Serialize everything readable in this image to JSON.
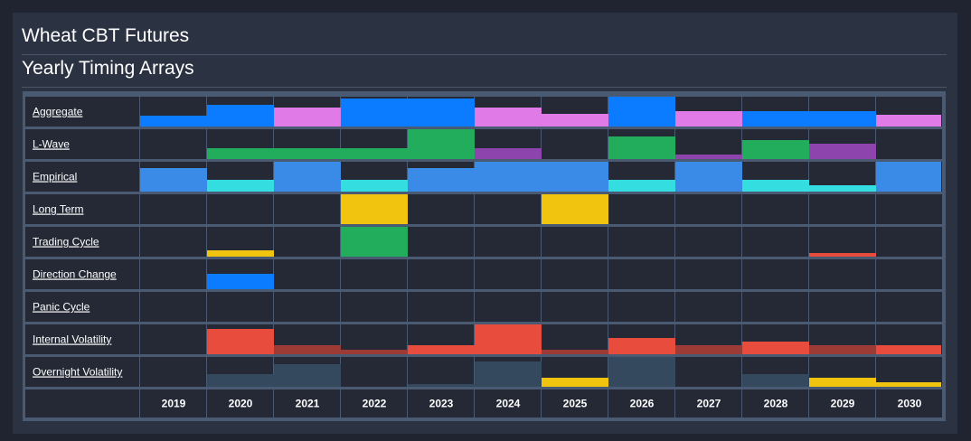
{
  "header": {
    "title": "Wheat CBT Futures",
    "subtitle": "Yearly Timing Arrays"
  },
  "colors": {
    "page_bg": "#1f2430",
    "panel_bg": "#2b3242",
    "cell_bg": "#242935",
    "grid_line": "#3f4a5c",
    "frame": "#4a5a73",
    "blue": "#0b7bff",
    "pink": "#e07ae6",
    "green": "#22ad5c",
    "purple": "#8e44ad",
    "steel_blue": "#3a8ae8",
    "cyan": "#34dde0",
    "yellow": "#f1c40f",
    "red": "#e74c3c",
    "dark_red": "#9c3a36",
    "slate": "#34495e"
  },
  "chart_data": {
    "type": "heatmap",
    "title": "Yearly Timing Arrays",
    "years": [
      "2019",
      "2020",
      "2021",
      "2022",
      "2023",
      "2024",
      "2025",
      "2026",
      "2027",
      "2028",
      "2029",
      "2030"
    ],
    "value_scale": [
      0,
      1
    ],
    "rows": [
      {
        "label": "Aggregate",
        "colors": [
          "blue",
          "blue",
          "pink",
          "blue",
          "blue",
          "pink",
          "pink",
          "blue",
          "pink",
          "blue",
          "blue",
          "pink"
        ],
        "values": [
          0.35,
          0.72,
          0.64,
          0.95,
          0.95,
          0.64,
          0.42,
          1.0,
          0.5,
          0.5,
          0.5,
          0.4
        ]
      },
      {
        "label": "L-Wave",
        "colors": [
          "green",
          "green",
          "green",
          "green",
          "green",
          "purple",
          "green",
          "green",
          "purple",
          "green",
          "purple",
          "green"
        ],
        "values": [
          0,
          0.36,
          0.36,
          0.36,
          1.0,
          0.36,
          0,
          0.76,
          0.14,
          0.64,
          0.52,
          0
        ]
      },
      {
        "label": "Empirical",
        "colors": [
          "steel_blue",
          "cyan",
          "steel_blue",
          "cyan",
          "steel_blue",
          "steel_blue",
          "steel_blue",
          "cyan",
          "steel_blue",
          "cyan",
          "cyan",
          "steel_blue"
        ],
        "values": [
          0.78,
          0.4,
          1.0,
          0.4,
          0.78,
          1.0,
          1.0,
          0.4,
          1.0,
          0.4,
          0.2,
          1.0
        ]
      },
      {
        "label": "Long Term",
        "colors": [
          "yellow",
          "yellow",
          "yellow",
          "yellow",
          "yellow",
          "yellow",
          "yellow",
          "yellow",
          "yellow",
          "yellow",
          "yellow",
          "yellow"
        ],
        "values": [
          0,
          0,
          0,
          1.0,
          0,
          0,
          1.0,
          0,
          0,
          0,
          0,
          0
        ]
      },
      {
        "label": "Trading Cycle",
        "colors": [
          "yellow",
          "yellow",
          "green",
          "green",
          "green",
          "green",
          "green",
          "green",
          "green",
          "green",
          "red",
          "green"
        ],
        "values": [
          0,
          0.22,
          0,
          1.0,
          0,
          0,
          0,
          0,
          0,
          0,
          0.12,
          0
        ]
      },
      {
        "label": "Direction Change",
        "colors": [
          "blue",
          "blue",
          "blue",
          "blue",
          "blue",
          "blue",
          "blue",
          "blue",
          "blue",
          "blue",
          "blue",
          "blue"
        ],
        "values": [
          0,
          0.5,
          0,
          0,
          0,
          0,
          0,
          0,
          0,
          0,
          0,
          0
        ]
      },
      {
        "label": "Panic Cycle",
        "colors": [
          "red",
          "red",
          "red",
          "red",
          "red",
          "red",
          "red",
          "red",
          "red",
          "red",
          "red",
          "red"
        ],
        "values": [
          0,
          0,
          0,
          0,
          0,
          0,
          0,
          0,
          0,
          0,
          0,
          0
        ]
      },
      {
        "label": "Internal Volatility",
        "colors": [
          "red",
          "red",
          "dark_red",
          "dark_red",
          "red",
          "red",
          "dark_red",
          "red",
          "dark_red",
          "red",
          "dark_red",
          "red"
        ],
        "values": [
          0,
          0.86,
          0.3,
          0.14,
          0.3,
          1.0,
          0.14,
          0.55,
          0.3,
          0.42,
          0.3,
          0.3
        ]
      },
      {
        "label": "Overnight Volatility",
        "colors": [
          "slate",
          "slate",
          "slate",
          "slate",
          "slate",
          "slate",
          "yellow",
          "slate",
          "slate",
          "slate",
          "yellow",
          "yellow"
        ],
        "values": [
          0,
          0.42,
          0.75,
          0,
          0.1,
          0.86,
          0.3,
          1.0,
          0,
          0.42,
          0.3,
          0.14
        ]
      }
    ]
  }
}
